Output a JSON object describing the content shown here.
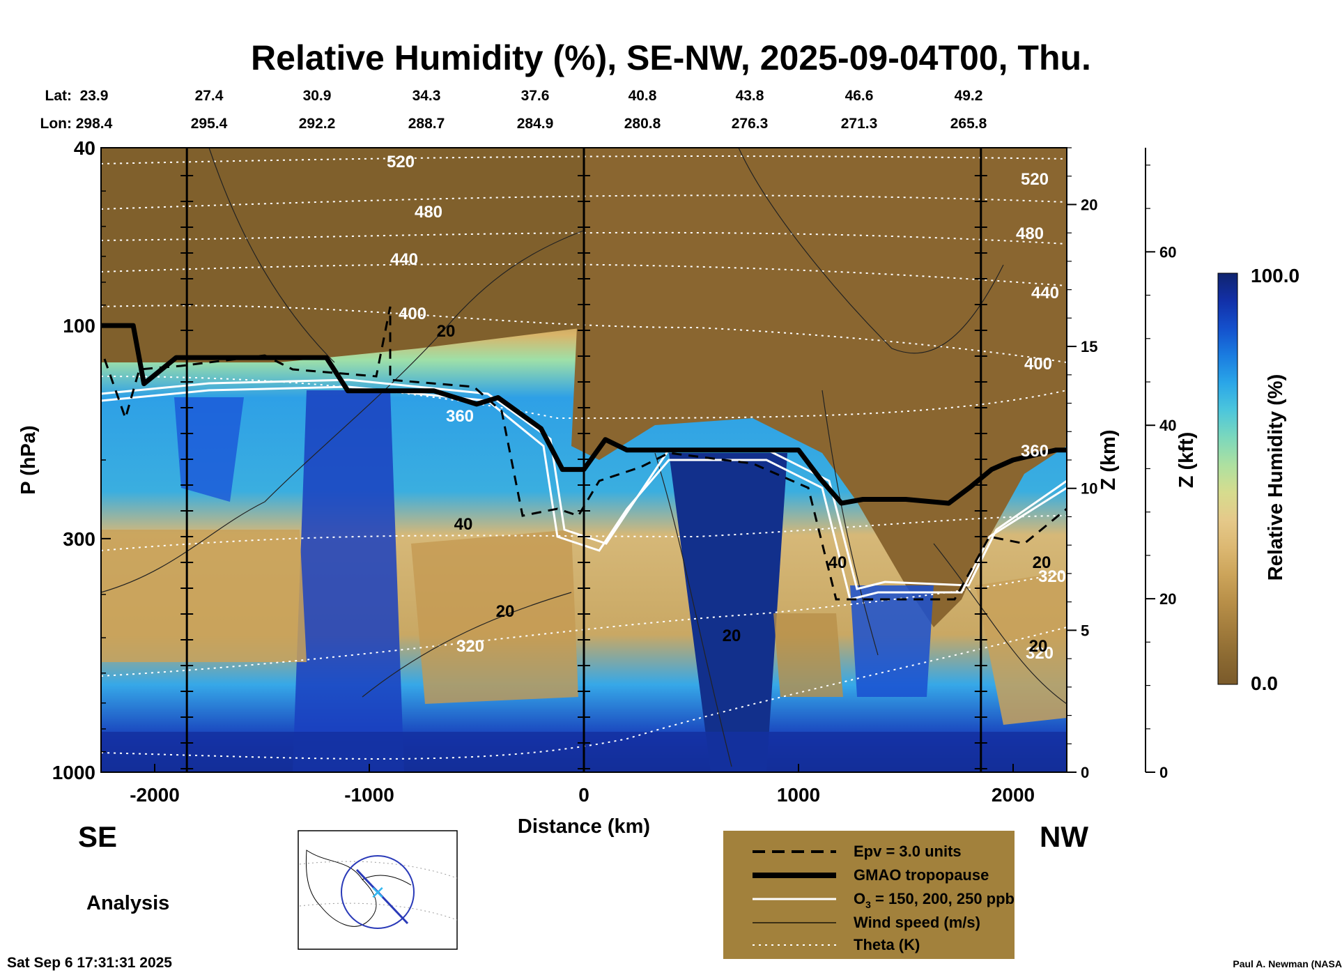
{
  "header": {
    "title": "Relative Humidity (%), SE-NW, 2025-09-04T00, Thu.",
    "lat_label": "Lat:",
    "lon_label": "Lon:",
    "lats": [
      "23.9",
      "27.4",
      "30.9",
      "34.3",
      "37.6",
      "40.8",
      "43.8",
      "46.6",
      "49.2"
    ],
    "lons": [
      "298.4",
      "295.4",
      "292.2",
      "288.7",
      "284.9",
      "280.8",
      "276.3",
      "271.3",
      "265.8"
    ]
  },
  "axes": {
    "x_label": "Distance (km)",
    "x_ticks": [
      "-2000",
      "-1000",
      "0",
      "1000",
      "2000"
    ],
    "y_label": "P (hPa)",
    "y_ticks": [
      "40",
      "100",
      "300",
      "1000"
    ],
    "z_km_label": "Z (km)",
    "z_km_ticks": [
      "0",
      "5",
      "10",
      "15",
      "20"
    ],
    "z_kft_label": "Z (kft)",
    "z_kft_ticks": [
      "0",
      "20",
      "40",
      "60"
    ]
  },
  "labels": {
    "left_end": "SE",
    "right_end": "NW",
    "analysis": "Analysis",
    "timestamp": "Sat Sep  6 17:31:31 2025",
    "credit": "Paul A. Newman (NASA"
  },
  "colorbar": {
    "label": "Relative Humidity (%)",
    "max_label": "100.0",
    "min_label": "0.0",
    "colors": [
      "#7a5a2a",
      "#8c6a32",
      "#a27c3c",
      "#b88f48",
      "#cca45a",
      "#dcb872",
      "#e5c98a",
      "#d6dc8e",
      "#aee0a0",
      "#7cd8bc",
      "#4cc6dc",
      "#2aa6e8",
      "#1a7ce0",
      "#1450cc",
      "#1230a8",
      "#10246e"
    ]
  },
  "theta_labels": [
    "520",
    "480",
    "440",
    "400",
    "360",
    "320",
    "520",
    "480",
    "440",
    "400",
    "360",
    "320",
    "320"
  ],
  "wind_labels": [
    "20",
    "40",
    "20",
    "20",
    "40",
    "20",
    "20"
  ],
  "legend": {
    "items": [
      {
        "label": "Epv = 3.0 units",
        "style": "dashed"
      },
      {
        "label": "GMAO tropopause",
        "style": "thick"
      },
      {
        "label": "O",
        "sub": "3",
        "suffix": " = 150, 200, 250 ppb",
        "style": "white"
      },
      {
        "label": "Wind speed (m/s)",
        "style": "thin"
      },
      {
        "label": "Theta (K)",
        "style": "dotted"
      }
    ],
    "background": "#a2813c"
  },
  "chart_data": {
    "type": "heatmap",
    "title": "Relative Humidity (%), SE-NW, 2025-09-04T00, Thu.",
    "variable": "Relative Humidity (%)",
    "color_range": [
      0.0,
      100.0
    ],
    "xlabel": "Distance (km)",
    "ylabel": "P (hPa)",
    "xlim": [
      -2250,
      2250
    ],
    "ylim": [
      1000,
      40
    ],
    "yscale": "log",
    "z_km_range": [
      0,
      22
    ],
    "z_kft_range": [
      0,
      72
    ],
    "vertical_markers_km": [
      -1850,
      0,
      1850
    ],
    "tropopause_hPa": {
      "x": [
        -2250,
        -2100,
        -2050,
        -1900,
        -1500,
        -1300,
        -1200,
        -1100,
        -1000,
        -900,
        -800,
        -700,
        -500,
        -400,
        -200,
        -100,
        0,
        100,
        200,
        400,
        500,
        900,
        1000,
        1100,
        1200,
        1300,
        1500,
        1700,
        1800,
        1900,
        2000,
        2200,
        2250
      ],
      "p": [
        100,
        100,
        135,
        118,
        118,
        118,
        118,
        140,
        140,
        140,
        140,
        140,
        150,
        145,
        170,
        210,
        210,
        180,
        190,
        190,
        190,
        190,
        190,
        220,
        250,
        245,
        245,
        250,
        230,
        210,
        200,
        190,
        190
      ]
    },
    "note": "Shaded RH field (brown=dry stratosphere, blue=moist troposphere) with theta contours (320-520 K), wind speed contours (20, 40 m/s), EPV=3.0 and O3 150/200/250 ppb lines."
  }
}
